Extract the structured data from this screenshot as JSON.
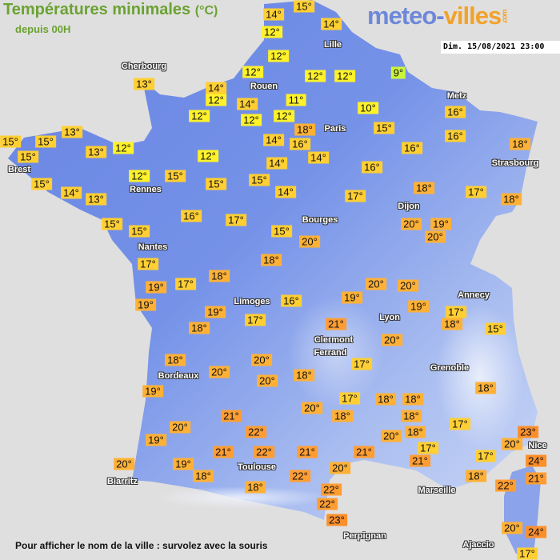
{
  "header": {
    "title": "Températures minimales",
    "title_unit": "(°C)",
    "subtitle": "depuis 00H",
    "date": "Dim. 15/08/2021 23:00"
  },
  "logo": {
    "part1": "meteo-",
    "part2": "villes",
    "suffix": ".com"
  },
  "footer": "Pour afficher le nom de la ville : survolez avec la souris",
  "colors": {
    "background": "#e0dfdf",
    "land": "#6d8ae4",
    "title": "#6aa232",
    "temp_9": "#ccf53a",
    "temp_10_12": "#fff22a",
    "temp_13_17": "#ffcf33",
    "temp_18_20": "#ffb136",
    "temp_21_22": "#ff9d33",
    "temp_23_24": "#fb8f2c"
  },
  "cities": [
    "Cherbourg",
    "Rouen",
    "Lille",
    "Paris",
    "Metz",
    "Strasbourg",
    "Brest",
    "Rennes",
    "Nantes",
    "Bourges",
    "Dijon",
    "Limoges",
    "Lyon",
    "Annecy",
    "Clermont",
    "Ferrand",
    "Grenoble",
    "Bordeaux",
    "Toulouse",
    "Biarritz",
    "Marseille",
    "Perpignan",
    "Nice",
    "Ajaccio"
  ],
  "temperatures": [
    14,
    15,
    12,
    14,
    12,
    12,
    14,
    12,
    14,
    12,
    12,
    11,
    12,
    12,
    12,
    9,
    10,
    18,
    15,
    16,
    14,
    14,
    14,
    16,
    16,
    16,
    16,
    18,
    13,
    13,
    15,
    15,
    15,
    13,
    12,
    12,
    15,
    14,
    13,
    12,
    15,
    15,
    15,
    14,
    17,
    18,
    17,
    18,
    15,
    15,
    16,
    17,
    15,
    20,
    20,
    19,
    20,
    17,
    18,
    18,
    19,
    17,
    19,
    19,
    18,
    17,
    16,
    19,
    20,
    20,
    19,
    17,
    18,
    15,
    21,
    20,
    17,
    18,
    18,
    20,
    20,
    20,
    19,
    21,
    22,
    20,
    19,
    21,
    22,
    21,
    20,
    19,
    18,
    18,
    22,
    20,
    21,
    22,
    22,
    23,
    17,
    18,
    20,
    18,
    18,
    18,
    18,
    20,
    17,
    21,
    17,
    18,
    17,
    18,
    22,
    20,
    23,
    24,
    21,
    20,
    24,
    17
  ]
}
